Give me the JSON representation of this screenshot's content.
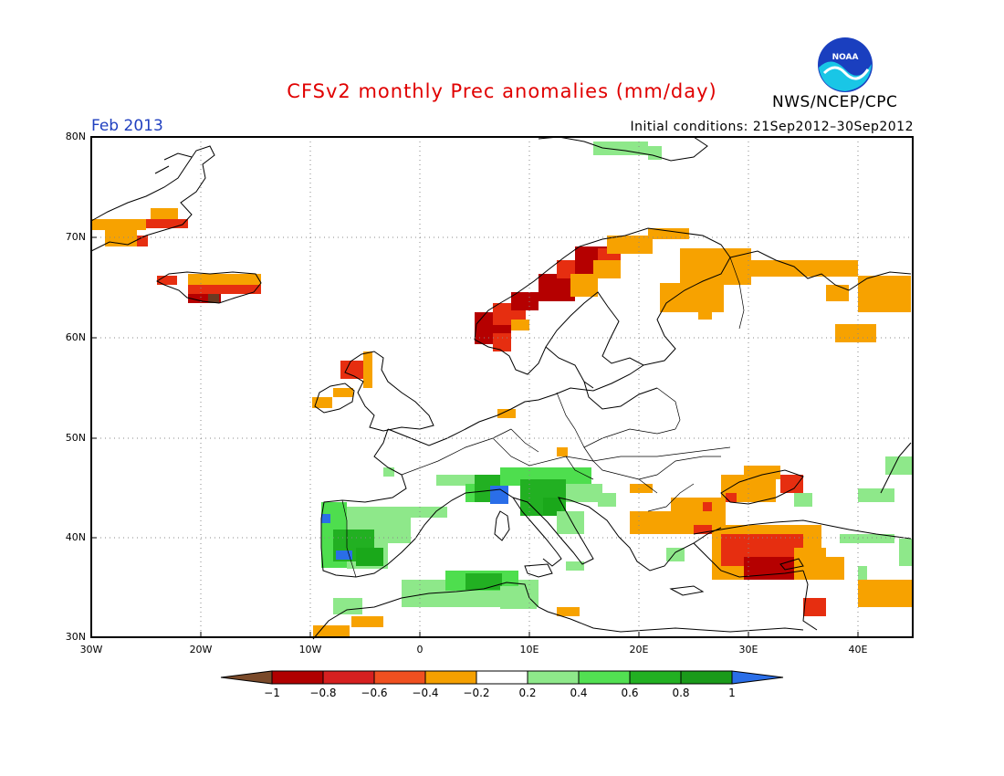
{
  "header": {
    "title": "CFSv2 monthly Prec anomalies (mm/day)",
    "period": "Feb 2013",
    "initial_conditions": "Initial conditions: 21Sep2012–30Sep2012",
    "agency": "NWS/NCEP/CPC",
    "logo_text": "NOAA"
  },
  "map": {
    "lat_labels": [
      "80N",
      "70N",
      "60N",
      "50N",
      "40N",
      "30N"
    ],
    "lon_labels": [
      "30W",
      "20W",
      "10W",
      "0",
      "10E",
      "20E",
      "30E",
      "40E"
    ],
    "colorbar": {
      "labels": [
        "−1",
        "−0.8",
        "−0.6",
        "−0.4",
        "−0.2",
        "0.2",
        "0.4",
        "0.6",
        "0.8",
        "1"
      ],
      "colors": [
        "#7a4a2a",
        "#b00000",
        "#d62020",
        "#f05020",
        "#f5a000",
        "#ffffff",
        "#8ee88a",
        "#52e052",
        "#22b022",
        "#1a9a1a",
        "#2a6ee8"
      ]
    },
    "anomaly_colors": {
      "brown": "#6a3a22",
      "dark_red": "#b50000",
      "red": "#e62e10",
      "orange": "#f7a200",
      "light_green": "#8ee88a",
      "green": "#4ede4e",
      "dark_green": "#1aa81a",
      "blue": "#2a6ee8"
    }
  }
}
